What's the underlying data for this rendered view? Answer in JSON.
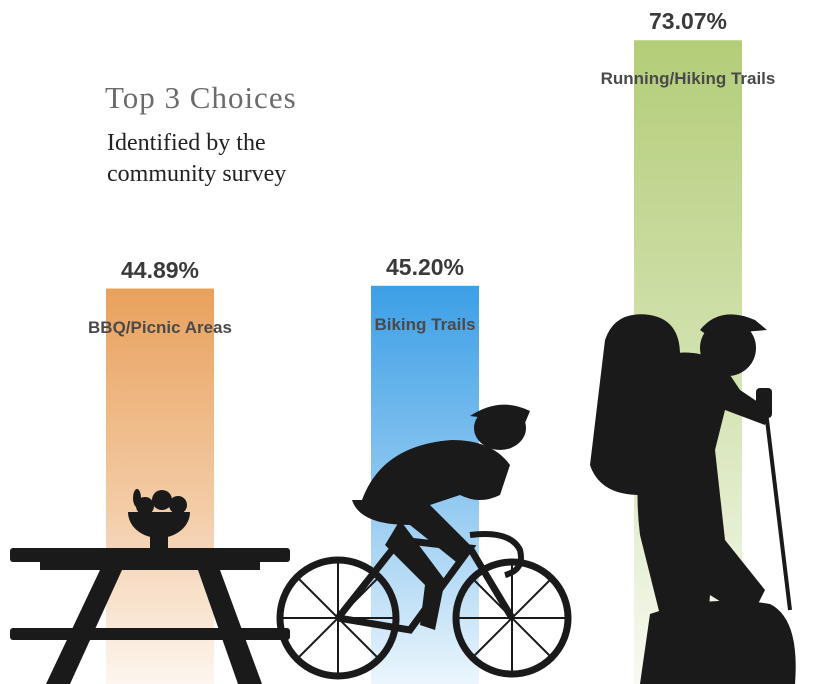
{
  "chart_data": {
    "type": "bar",
    "title": "Top 3 Choices",
    "subtitle": "Identified by the community survey",
    "categories": [
      "BBQ/Picnic Areas",
      "Biking Trails",
      "Running/Hiking Trails"
    ],
    "values": [
      44.89,
      45.2,
      73.07
    ],
    "value_labels": [
      "44.89%",
      "45.20%",
      "73.07%"
    ],
    "colors": [
      "#e9a15c",
      "#3c9fe6",
      "#b3cd78"
    ]
  }
}
